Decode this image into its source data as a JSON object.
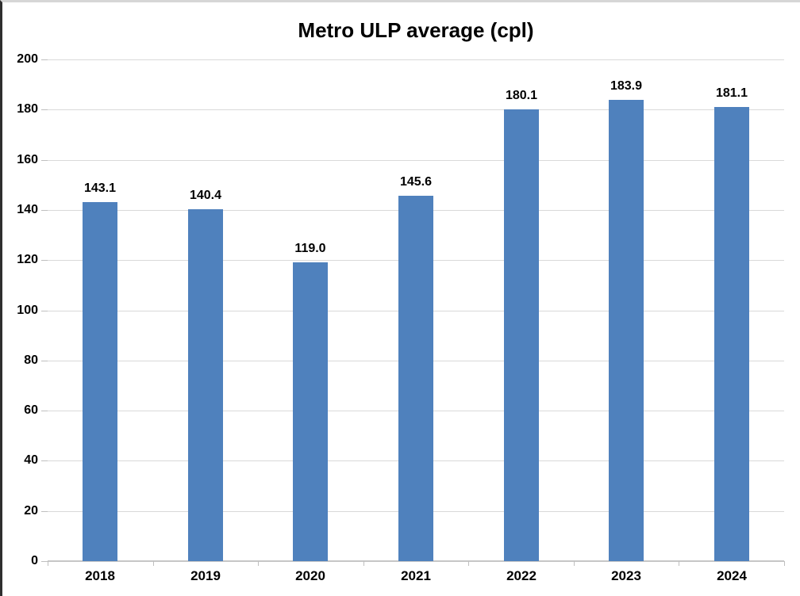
{
  "window": {
    "background": "#ffffff",
    "edge_left_color": "#2f2f2f",
    "edge_top_color": "#d6d6d6"
  },
  "chart_data": {
    "type": "bar",
    "title": "Metro ULP average (cpl)",
    "categories": [
      "2018",
      "2019",
      "2020",
      "2021",
      "2022",
      "2023",
      "2024"
    ],
    "values": [
      143.1,
      140.4,
      119.0,
      145.6,
      180.1,
      183.9,
      181.1
    ],
    "data_labels": [
      "143.1",
      "140.4",
      "119.0",
      "145.6",
      "180.1",
      "183.9",
      "181.1"
    ],
    "xlabel": "",
    "ylabel": "",
    "ylim": [
      0,
      200
    ],
    "ytick_interval": 20,
    "ytick_labels": [
      "0",
      "20",
      "40",
      "60",
      "80",
      "100",
      "120",
      "140",
      "160",
      "180",
      "200"
    ],
    "grid": true,
    "legend": false,
    "bar_color": "#4f81bd",
    "gridline_color": "#d9d9d9",
    "axis_color": "#c6c6c6",
    "label_color": "#000000"
  }
}
